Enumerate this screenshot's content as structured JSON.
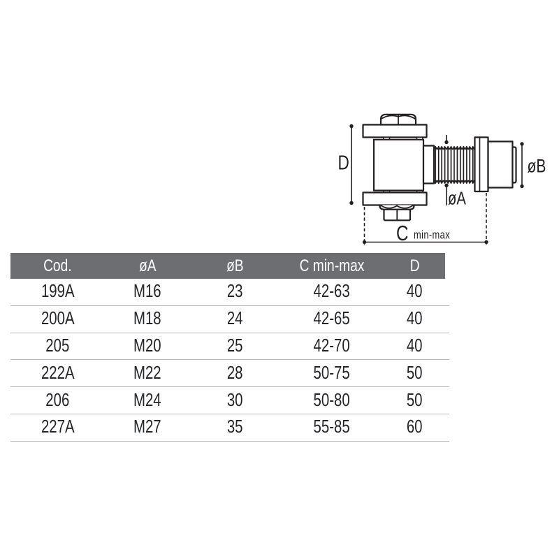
{
  "drawing": {
    "labels": {
      "d": "D",
      "dia_a": "øA",
      "dia_b": "øB",
      "c": "C",
      "c_sub": "min-max"
    }
  },
  "table": {
    "columns": [
      "Cod.",
      "øA",
      "øB",
      "C min-max",
      "D"
    ],
    "rows": [
      [
        "199A",
        "M16",
        "23",
        "42-63",
        "40"
      ],
      [
        "200A",
        "M18",
        "24",
        "42-65",
        "40"
      ],
      [
        "205",
        "M20",
        "25",
        "42-70",
        "40"
      ],
      [
        "222A",
        "M22",
        "28",
        "50-75",
        "50"
      ],
      [
        "206",
        "M24",
        "30",
        "50-80",
        "50"
      ],
      [
        "227A",
        "M27",
        "35",
        "55-85",
        "60"
      ]
    ]
  },
  "colors": {
    "header_bg": "#6d6e71",
    "header_text": "#ffffff",
    "row_text": "#232528",
    "separator": "#b9babc",
    "line": "#231f20"
  }
}
